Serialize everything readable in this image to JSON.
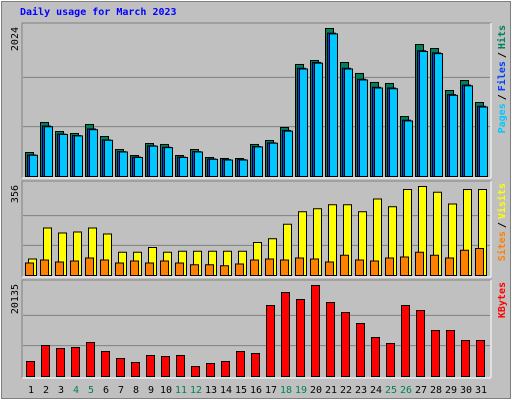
{
  "chart_data": [
    {
      "type": "bar",
      "title": "Daily usage for March 2023",
      "ylim": [
        0,
        2024
      ],
      "yticks": [
        2024
      ],
      "grid": true,
      "legend_separator": "/",
      "series": [
        {
          "name": "Hits",
          "color": "#00805c",
          "values": [
            328,
            738,
            615,
            588,
            711,
            547,
            369,
            287,
            451,
            438,
            287,
            369,
            260,
            246,
            246,
            438,
            492,
            670,
            1532,
            1586,
            2024,
            1559,
            1409,
            1286,
            1272,
            820,
            1805,
            1750,
            1176,
            1313,
            1012
          ]
        },
        {
          "name": "Files",
          "color": "#0040ff",
          "values": [
            295,
            690,
            580,
            560,
            650,
            500,
            340,
            265,
            420,
            400,
            265,
            340,
            240,
            230,
            230,
            410,
            460,
            630,
            1480,
            1560,
            1960,
            1480,
            1330,
            1220,
            1210,
            770,
            1720,
            1690,
            1120,
            1250,
            960
          ]
        },
        {
          "name": "Pages",
          "color": "#00c8ff",
          "values": [
            290,
            680,
            575,
            555,
            640,
            495,
            335,
            260,
            415,
            395,
            260,
            335,
            235,
            225,
            225,
            405,
            455,
            620,
            1470,
            1550,
            1950,
            1470,
            1320,
            1210,
            1200,
            760,
            1710,
            1680,
            1110,
            1240,
            950
          ]
        }
      ]
    },
    {
      "type": "bar",
      "ylim": [
        0,
        356
      ],
      "yticks": [
        356
      ],
      "grid": true,
      "legend_separator": "/",
      "series": [
        {
          "name": "Visits",
          "color": "#ffff00",
          "values": [
            66,
            190,
            170,
            174,
            190,
            166,
            93,
            93,
            112,
            93,
            97,
            97,
            97,
            97,
            97,
            132,
            147,
            205,
            255,
            267,
            283,
            283,
            255,
            306,
            275,
            344,
            356,
            333,
            286,
            344,
            344
          ]
        },
        {
          "name": "Sites",
          "color": "#ff8000",
          "values": [
            50,
            62,
            54,
            58,
            70,
            62,
            50,
            58,
            50,
            58,
            50,
            43,
            43,
            39,
            46,
            62,
            66,
            62,
            70,
            66,
            54,
            81,
            62,
            58,
            70,
            74,
            93,
            81,
            70,
            101,
            108
          ]
        }
      ]
    },
    {
      "type": "bar",
      "ylim": [
        0,
        20135
      ],
      "yticks": [
        20135
      ],
      "grid": true,
      "categories": [
        "1",
        "2",
        "3",
        "4",
        "5",
        "6",
        "7",
        "8",
        "9",
        "10",
        "11",
        "12",
        "13",
        "14",
        "15",
        "16",
        "17",
        "18",
        "19",
        "20",
        "21",
        "22",
        "23",
        "24",
        "25",
        "26",
        "27",
        "28",
        "29",
        "30",
        "31"
      ],
      "category_colors": [
        "#000000",
        "#000000",
        "#000000",
        "#00805c",
        "#00805c",
        "#000000",
        "#000000",
        "#000000",
        "#000000",
        "#000000",
        "#00805c",
        "#00805c",
        "#000000",
        "#000000",
        "#000000",
        "#000000",
        "#000000",
        "#00805c",
        "#00805c",
        "#000000",
        "#000000",
        "#000000",
        "#000000",
        "#000000",
        "#00805c",
        "#00805c",
        "#000000",
        "#000000",
        "#000000",
        "#000000",
        "#000000"
      ],
      "series": [
        {
          "name": "KBytes",
          "color": "#ff0000",
          "values": [
            3319,
            6859,
            6195,
            6416,
            7522,
            5531,
            3983,
            3098,
            4647,
            4425,
            4647,
            2213,
            2876,
            3319,
            5531,
            5089,
            15709,
            18586,
            17037,
            20135,
            16373,
            14161,
            11727,
            8629,
            7301,
            15709,
            14603,
            10178,
            10178,
            7965,
            7965
          ]
        }
      ]
    }
  ]
}
